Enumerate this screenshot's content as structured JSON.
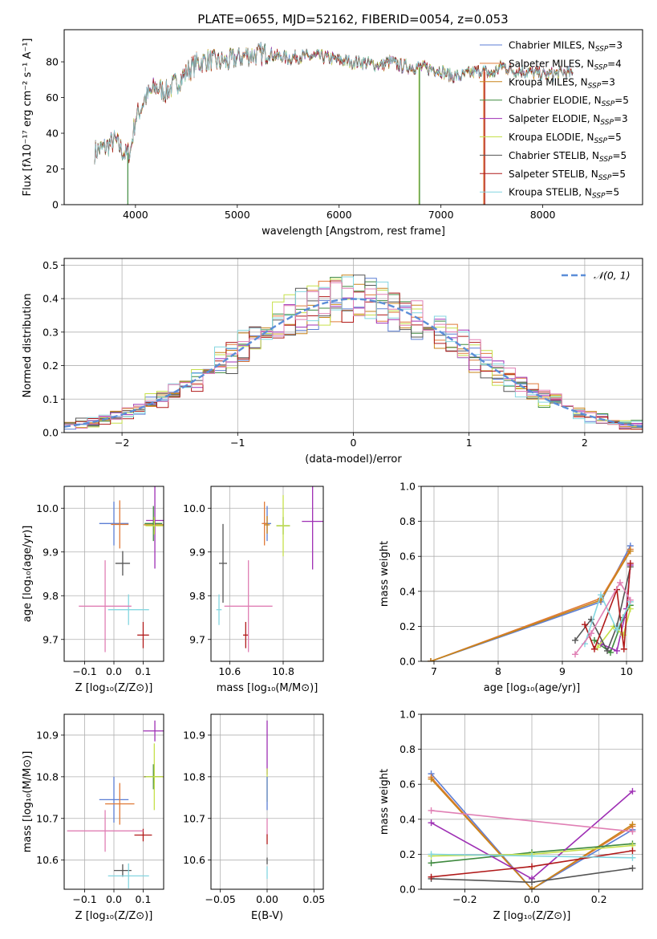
{
  "title": "PLATE=0655, MJD=52162, FIBERID=0054, z=0.053",
  "colors": {
    "Chabrier MILES": "#5b7ed4",
    "Salpeter MILES": "#e07b39",
    "Kroupa MILES": "#c8841a",
    "Chabrier ELODIE": "#3f8a3f",
    "Salpeter ELODIE": "#9e2fb4",
    "Kroupa ELODIE": "#c6e04a",
    "Chabrier STELIB": "#555555",
    "Salpeter STELIB": "#b01a1a",
    "Kroupa STELIB": "#84d6e0",
    "pink": "#e07fb4"
  },
  "chart_data": [
    {
      "id": "spectrum",
      "type": "line",
      "title": "PLATE=0655, MJD=52162, FIBERID=0054, z=0.053",
      "xlabel": "wavelength [Angstrom, rest frame]",
      "ylabel": "Flux [fλ10⁻¹⁷ erg cm⁻² s⁻¹ A⁻¹]",
      "xlim": [
        3300,
        8980
      ],
      "ylim": [
        0,
        98
      ],
      "xticks": [
        4000,
        5000,
        6000,
        7000,
        8000
      ],
      "yticks": [
        0,
        20,
        40,
        60,
        80
      ],
      "grid": false,
      "legend_position": "top-right",
      "legend": [
        {
          "series": "Chabrier MILES",
          "label": "Chabrier MILES, N",
          "sub": "SSP",
          "suffix": "=3"
        },
        {
          "series": "Salpeter MILES",
          "label": "Salpeter MILES, N",
          "sub": "SSP",
          "suffix": "=4"
        },
        {
          "series": "Kroupa MILES",
          "label": "Kroupa MILES, N",
          "sub": "SSP",
          "suffix": "=3"
        },
        {
          "series": "Chabrier ELODIE",
          "label": "Chabrier ELODIE, N",
          "sub": "SSP",
          "suffix": "=5"
        },
        {
          "series": "Salpeter ELODIE",
          "label": "Salpeter ELODIE, N",
          "sub": "SSP",
          "suffix": "=3"
        },
        {
          "series": "Kroupa ELODIE",
          "label": "Kroupa ELODIE, N",
          "sub": "SSP",
          "suffix": "=5"
        },
        {
          "series": "Chabrier STELIB",
          "label": "Chabrier STELIB, N",
          "sub": "SSP",
          "suffix": "=5"
        },
        {
          "series": "Salpeter STELIB",
          "label": "Salpeter STELIB, N",
          "sub": "SSP",
          "suffix": "=5"
        },
        {
          "series": "Kroupa STELIB",
          "label": "Kroupa STELIB, N",
          "sub": "SSP",
          "suffix": "=5"
        }
      ],
      "continuum": {
        "x": [
          3600,
          3700,
          3800,
          3900,
          3950,
          4000,
          4100,
          4200,
          4300,
          4400,
          4500,
          4600,
          4700,
          4800,
          4900,
          5000,
          5100,
          5200,
          5300,
          5400,
          5500,
          5600,
          5700,
          5800,
          5900,
          6000,
          6100,
          6200,
          6300,
          6400,
          6500,
          6600,
          6700,
          6800,
          6900,
          7000,
          7100,
          7200,
          7300,
          7400,
          7500,
          7600,
          7700,
          7800,
          7900,
          8000,
          8100,
          8200,
          8300
        ],
        "y": [
          30,
          32,
          36,
          28,
          30,
          48,
          60,
          66,
          63,
          68,
          74,
          79,
          81,
          80,
          80,
          82,
          84,
          84,
          85,
          83,
          82,
          83,
          83,
          83,
          82,
          81,
          80,
          80,
          79,
          78,
          80,
          78,
          77,
          77,
          76,
          75,
          72,
          72,
          74,
          75,
          73,
          78,
          75,
          75,
          74,
          73,
          73,
          74,
          73
        ]
      },
      "drops": [
        {
          "series": "Chabrier ELODIE",
          "x": 3925
        },
        {
          "series": "Kroupa ELODIE",
          "x": 6785
        },
        {
          "series": "Chabrier ELODIE",
          "x": 6790
        },
        {
          "series": "Salpeter MILES",
          "x": 7420
        },
        {
          "series": "Salpeter STELIB",
          "x": 7430
        }
      ]
    },
    {
      "id": "residuals",
      "type": "bar",
      "xlabel": "(data-model)/error",
      "ylabel": "Normed distribution",
      "xlim": [
        -2.5,
        2.5
      ],
      "ylim": [
        0,
        0.52
      ],
      "xticks": [
        -2,
        -1,
        0,
        1,
        2
      ],
      "yticks": [
        0.0,
        0.1,
        0.2,
        0.3,
        0.4,
        0.5
      ],
      "grid": true,
      "legend_position": "top-right",
      "legend": [
        {
          "label": "𝒩(0, 1)",
          "color": "#5b8ed8"
        }
      ],
      "bin_width": 0.1,
      "gaussian": {
        "mean": 0,
        "sigma": 1
      }
    },
    {
      "id": "z_age",
      "type": "scatter",
      "xlabel": "Z [log₁₀(Z/Z⊙)]",
      "ylabel": "age  [log₁₀(age/yr)]",
      "xlim": [
        -0.17,
        0.17
      ],
      "ylim": [
        9.65,
        10.05
      ],
      "xticks": [
        -0.1,
        0.0,
        0.1
      ],
      "yticks": [
        9.7,
        9.8,
        9.9,
        10.0
      ],
      "grid": true,
      "points": [
        {
          "series": "Chabrier MILES",
          "x": 0.0,
          "y": 9.965,
          "xerr": 0.05,
          "yerr": 0.05
        },
        {
          "series": "Salpeter MILES",
          "x": 0.02,
          "y": 9.963,
          "xerr": 0.03,
          "yerr": 0.055
        },
        {
          "series": "Kroupa MILES",
          "x": 0.137,
          "y": 9.962,
          "xerr": 0.035,
          "yerr": 0.015
        },
        {
          "series": "Chabrier ELODIE",
          "x": 0.135,
          "y": 9.965,
          "xerr": 0.03,
          "yerr": 0.04
        },
        {
          "series": "Salpeter ELODIE",
          "x": 0.14,
          "y": 9.972,
          "xerr": 0.03,
          "yerr": 0.11
        },
        {
          "series": "Kroupa ELODIE",
          "x": 0.138,
          "y": 9.96,
          "xerr": 0.03,
          "yerr": 0.02
        },
        {
          "series": "Chabrier STELIB",
          "x": 0.03,
          "y": 9.874,
          "xerr": 0.025,
          "yerr": 0.028
        },
        {
          "series": "Salpeter STELIB",
          "x": 0.1,
          "y": 9.71,
          "xerr": 0.02,
          "yerr": 0.03
        },
        {
          "series": "Kroupa STELIB",
          "x": 0.05,
          "y": 9.768,
          "xerr": 0.07,
          "yerr": 0.035
        },
        {
          "series": "pink",
          "x": -0.03,
          "y": 9.776,
          "xerr": 0.09,
          "yerr": 0.105
        }
      ]
    },
    {
      "id": "mass_age",
      "type": "scatter",
      "xlabel": "mass [log₁₀(M/M⊙)]",
      "ylabel": "",
      "xlim": [
        10.53,
        10.95
      ],
      "ylim": [
        9.65,
        10.05
      ],
      "xticks": [
        10.6,
        10.8
      ],
      "yticks": [
        9.7,
        9.8,
        9.9,
        10.0
      ],
      "grid": true,
      "points": [
        {
          "series": "Chabrier MILES",
          "x": 10.74,
          "y": 9.965,
          "xerr": 0.015,
          "yerr": 0.04
        },
        {
          "series": "Salpeter MILES",
          "x": 10.73,
          "y": 9.965,
          "xerr": 0.01,
          "yerr": 0.05
        },
        {
          "series": "Kroupa MILES",
          "x": 10.74,
          "y": 9.962,
          "xerr": 0.01,
          "yerr": 0.02
        },
        {
          "series": "Chabrier ELODIE",
          "x": 10.8,
          "y": 9.96,
          "xerr": 0.025,
          "yerr": 0.02
        },
        {
          "series": "Salpeter ELODIE",
          "x": 10.91,
          "y": 9.97,
          "xerr": 0.04,
          "yerr": 0.11
        },
        {
          "series": "Kroupa ELODIE",
          "x": 10.8,
          "y": 9.96,
          "xerr": 0.025,
          "yerr": 0.07
        },
        {
          "series": "Chabrier STELIB",
          "x": 10.575,
          "y": 9.874,
          "xerr": 0.015,
          "yerr": 0.09
        },
        {
          "series": "Salpeter STELIB",
          "x": 10.66,
          "y": 9.71,
          "xerr": 0.01,
          "yerr": 0.03
        },
        {
          "series": "Kroupa STELIB",
          "x": 10.56,
          "y": 9.768,
          "xerr": 0.01,
          "yerr": 0.035
        },
        {
          "series": "pink",
          "x": 10.67,
          "y": 9.776,
          "xerr": 0.09,
          "yerr": 0.105
        }
      ]
    },
    {
      "id": "age_weight",
      "type": "line",
      "xlabel": "age  [log₁₀(age/yr)]",
      "ylabel": "mass weight",
      "xlim": [
        6.8,
        10.25
      ],
      "ylim": [
        0,
        1.0
      ],
      "xticks": [
        7,
        8,
        9,
        10
      ],
      "yticks": [
        0.0,
        0.2,
        0.4,
        0.6,
        0.8,
        1.0
      ],
      "grid": true,
      "series": [
        {
          "name": "Chabrier MILES",
          "x": [
            6.95,
            9.6,
            10.06
          ],
          "y": [
            0.0,
            0.34,
            0.66
          ]
        },
        {
          "name": "Salpeter MILES",
          "x": [
            6.95,
            9.6,
            10.06
          ],
          "y": [
            0.0,
            0.36,
            0.64
          ]
        },
        {
          "name": "Kroupa MILES",
          "x": [
            6.95,
            9.6,
            10.06
          ],
          "y": [
            0.0,
            0.35,
            0.63
          ]
        },
        {
          "name": "Chabrier ELODIE",
          "x": [
            9.5,
            9.75,
            9.95,
            10.06
          ],
          "y": [
            0.12,
            0.05,
            0.25,
            0.32
          ]
        },
        {
          "name": "Salpeter ELODIE",
          "x": [
            9.6,
            9.85,
            10.0,
            10.06
          ],
          "y": [
            0.1,
            0.06,
            0.3,
            0.55
          ]
        },
        {
          "name": "Kroupa ELODIE",
          "x": [
            9.55,
            9.8,
            9.95,
            10.06
          ],
          "y": [
            0.08,
            0.2,
            0.15,
            0.3
          ]
        },
        {
          "name": "Chabrier STELIB",
          "x": [
            9.2,
            9.45,
            9.7,
            9.85,
            10.06
          ],
          "y": [
            0.12,
            0.24,
            0.06,
            0.2,
            0.54
          ]
        },
        {
          "name": "Salpeter STELIB",
          "x": [
            9.35,
            9.5,
            9.85,
            9.96,
            10.06
          ],
          "y": [
            0.21,
            0.07,
            0.41,
            0.07,
            0.56
          ]
        },
        {
          "name": "Kroupa STELIB",
          "x": [
            9.35,
            9.6,
            9.85,
            10.06
          ],
          "y": [
            0.1,
            0.38,
            0.18,
            0.34
          ]
        },
        {
          "name": "pink",
          "x": [
            9.2,
            9.45,
            9.9,
            10.06
          ],
          "y": [
            0.04,
            0.16,
            0.45,
            0.35
          ]
        }
      ]
    },
    {
      "id": "z_mass",
      "type": "scatter",
      "xlabel": "Z [log₁₀(Z/Z⊙)]",
      "ylabel": "mass [log₁₀(M/M⊙)]",
      "xlim": [
        -0.17,
        0.17
      ],
      "ylim": [
        10.53,
        10.95
      ],
      "xticks": [
        -0.1,
        0.0,
        0.1
      ],
      "yticks": [
        10.6,
        10.7,
        10.8,
        10.9
      ],
      "grid": true,
      "points": [
        {
          "series": "Chabrier MILES",
          "x": 0.0,
          "y": 10.745,
          "xerr": 0.05,
          "yerr": 0.055
        },
        {
          "series": "Salpeter MILES",
          "x": 0.02,
          "y": 10.735,
          "xerr": 0.05,
          "yerr": 0.05
        },
        {
          "series": "Kroupa MILES",
          "x": 0.137,
          "y": 10.8,
          "xerr": 0.035,
          "yerr": 0.015
        },
        {
          "series": "Chabrier ELODIE",
          "x": 0.135,
          "y": 10.8,
          "xerr": 0.03,
          "yerr": 0.03
        },
        {
          "series": "Salpeter ELODIE",
          "x": 0.14,
          "y": 10.91,
          "xerr": 0.04,
          "yerr": 0.025
        },
        {
          "series": "Kroupa ELODIE",
          "x": 0.138,
          "y": 10.8,
          "xerr": 0.03,
          "yerr": 0.08
        },
        {
          "series": "Chabrier STELIB",
          "x": 0.03,
          "y": 10.575,
          "xerr": 0.03,
          "yerr": 0.015
        },
        {
          "series": "Salpeter STELIB",
          "x": 0.1,
          "y": 10.66,
          "xerr": 0.03,
          "yerr": 0.015
        },
        {
          "series": "Kroupa STELIB",
          "x": 0.05,
          "y": 10.562,
          "xerr": 0.07,
          "yerr": 0.03
        },
        {
          "series": "pink",
          "x": -0.03,
          "y": 10.67,
          "xerr": 0.13,
          "yerr": 0.05
        }
      ]
    },
    {
      "id": "ebv_mass",
      "type": "scatter",
      "xlabel": "E(B-V)",
      "ylabel": "",
      "xlim": [
        -0.06,
        0.06
      ],
      "ylim": [
        10.53,
        10.95
      ],
      "xticks": [
        -0.05,
        0.0,
        0.05
      ],
      "yticks": [
        10.6,
        10.7,
        10.8,
        10.9
      ],
      "grid": true,
      "points": [
        {
          "series": "Salpeter ELODIE",
          "x": 0.0,
          "y": 10.87,
          "xerr": 0,
          "yerr": 0.065
        },
        {
          "series": "Kroupa ELODIE",
          "x": 0.0,
          "y": 10.78,
          "xerr": 0,
          "yerr": 0.04
        },
        {
          "series": "Chabrier MILES",
          "x": 0.0,
          "y": 10.76,
          "xerr": 0,
          "yerr": 0.04
        },
        {
          "series": "pink",
          "x": 0.0,
          "y": 10.68,
          "xerr": 0,
          "yerr": 0.02
        },
        {
          "series": "Salpeter STELIB",
          "x": 0.0,
          "y": 10.65,
          "xerr": 0,
          "yerr": 0.012
        },
        {
          "series": "Chabrier STELIB",
          "x": 0.0,
          "y": 10.598,
          "xerr": 0,
          "yerr": 0.008
        },
        {
          "series": "Kroupa STELIB",
          "x": 0.0,
          "y": 10.57,
          "xerr": 0,
          "yerr": 0.015
        }
      ]
    },
    {
      "id": "z_weight",
      "type": "line",
      "xlabel": "Z [log₁₀(Z/Z⊙)]",
      "ylabel": "mass weight",
      "xlim": [
        -0.33,
        0.33
      ],
      "ylim": [
        0,
        1.0
      ],
      "xticks": [
        -0.2,
        0.0,
        0.2
      ],
      "yticks": [
        0.0,
        0.2,
        0.4,
        0.6,
        0.8,
        1.0
      ],
      "grid": true,
      "series": [
        {
          "name": "Chabrier MILES",
          "x": [
            -0.3,
            0.0,
            0.3
          ],
          "y": [
            0.66,
            0.0,
            0.34
          ]
        },
        {
          "name": "Salpeter MILES",
          "x": [
            -0.3,
            0.0,
            0.3
          ],
          "y": [
            0.64,
            0.0,
            0.36
          ]
        },
        {
          "name": "Kroupa MILES",
          "x": [
            -0.3,
            0.0,
            0.3
          ],
          "y": [
            0.63,
            0.0,
            0.37
          ]
        },
        {
          "name": "Chabrier ELODIE",
          "x": [
            -0.3,
            0.0,
            0.3
          ],
          "y": [
            0.15,
            0.21,
            0.26
          ]
        },
        {
          "name": "Salpeter ELODIE",
          "x": [
            -0.3,
            0.0,
            0.3
          ],
          "y": [
            0.38,
            0.06,
            0.56
          ]
        },
        {
          "name": "Kroupa ELODIE",
          "x": [
            -0.3,
            0.0,
            0.3
          ],
          "y": [
            0.19,
            0.2,
            0.25
          ]
        },
        {
          "name": "Chabrier STELIB",
          "x": [
            -0.3,
            0.0,
            0.3
          ],
          "y": [
            0.06,
            0.04,
            0.12
          ]
        },
        {
          "name": "Salpeter STELIB",
          "x": [
            -0.3,
            0.0,
            0.3
          ],
          "y": [
            0.07,
            0.13,
            0.22
          ]
        },
        {
          "name": "Kroupa STELIB",
          "x": [
            -0.3,
            0.0,
            0.3
          ],
          "y": [
            0.2,
            0.19,
            0.18
          ]
        },
        {
          "name": "pink",
          "x": [
            -0.3,
            0.3
          ],
          "y": [
            0.45,
            0.33
          ]
        }
      ]
    }
  ]
}
